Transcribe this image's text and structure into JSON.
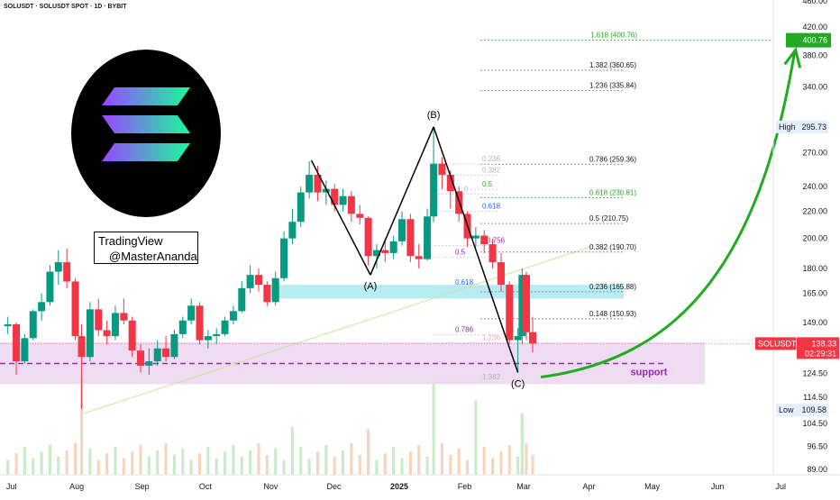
{
  "header": {
    "symbol_line": "SOLUSDT · SOLUSDT SPOT · 1D · BYBIT"
  },
  "watermark": {
    "line1": "TradingView",
    "line2": "@MasterAnanda"
  },
  "logo": {
    "name": "solana-logo",
    "colors": [
      "#9945ff",
      "#19fb9b"
    ]
  },
  "chart_data": {
    "type": "candlestick",
    "symbol": "SOLUSDT",
    "x": {
      "tick_labels": [
        "Jul",
        "Aug",
        "Sep",
        "Oct",
        "Nov",
        "Dec",
        "2025",
        "Feb",
        "Mar",
        "Apr",
        "May",
        "Jun",
        "Jul"
      ]
    },
    "y": {
      "scale": "log",
      "tick_values": [
        89.0,
        96.5,
        104.5,
        114.5,
        124.5,
        149.0,
        165.0,
        180.0,
        200.0,
        220.0,
        240.0,
        270.0,
        340.0,
        380.0,
        420.0,
        460.0
      ],
      "tick_labels": [
        "89.00",
        "96.50",
        "104.50",
        "114.50",
        "124.50",
        "149.00",
        "165.00",
        "180.00",
        "200.00",
        "220.00",
        "240.00",
        "270.00",
        "340.00",
        "380.00",
        "420.00",
        "460.00"
      ]
    },
    "price_badges": [
      {
        "label": "",
        "value": "400.76",
        "color": "#22ab22"
      },
      {
        "label": "High",
        "value": "295.73",
        "color": "#2962ff"
      },
      {
        "label": "SOLUSDT",
        "value": "138.33",
        "sub": "02:29:31",
        "color": "#f23645"
      },
      {
        "label": "Low",
        "value": "109.58",
        "color": "#2962ff"
      }
    ],
    "candles": [
      {
        "d": "2024-07-01",
        "o": 147,
        "h": 152,
        "l": 143,
        "c": 148
      },
      {
        "d": "2024-07-05",
        "o": 148,
        "h": 149,
        "l": 124,
        "c": 130
      },
      {
        "d": "2024-07-09",
        "o": 130,
        "h": 143,
        "l": 129,
        "c": 141
      },
      {
        "d": "2024-07-13",
        "o": 141,
        "h": 156,
        "l": 140,
        "c": 155
      },
      {
        "d": "2024-07-17",
        "o": 155,
        "h": 165,
        "l": 150,
        "c": 160
      },
      {
        "d": "2024-07-21",
        "o": 160,
        "h": 182,
        "l": 158,
        "c": 178
      },
      {
        "d": "2024-07-25",
        "o": 178,
        "h": 192,
        "l": 170,
        "c": 184
      },
      {
        "d": "2024-07-29",
        "o": 184,
        "h": 193,
        "l": 168,
        "c": 172
      },
      {
        "d": "2024-08-02",
        "o": 172,
        "h": 174,
        "l": 140,
        "c": 142
      },
      {
        "d": "2024-08-05",
        "o": 142,
        "h": 148,
        "l": 110,
        "c": 132
      },
      {
        "d": "2024-08-09",
        "o": 132,
        "h": 160,
        "l": 130,
        "c": 156
      },
      {
        "d": "2024-08-13",
        "o": 156,
        "h": 162,
        "l": 142,
        "c": 145
      },
      {
        "d": "2024-08-17",
        "o": 145,
        "h": 150,
        "l": 138,
        "c": 142
      },
      {
        "d": "2024-08-21",
        "o": 142,
        "h": 158,
        "l": 140,
        "c": 154
      },
      {
        "d": "2024-08-25",
        "o": 154,
        "h": 162,
        "l": 148,
        "c": 150
      },
      {
        "d": "2024-08-29",
        "o": 150,
        "h": 152,
        "l": 132,
        "c": 135
      },
      {
        "d": "2024-09-02",
        "o": 135,
        "h": 138,
        "l": 125,
        "c": 128
      },
      {
        "d": "2024-09-06",
        "o": 128,
        "h": 136,
        "l": 124,
        "c": 130
      },
      {
        "d": "2024-09-10",
        "o": 130,
        "h": 140,
        "l": 128,
        "c": 136
      },
      {
        "d": "2024-09-14",
        "o": 136,
        "h": 142,
        "l": 130,
        "c": 132
      },
      {
        "d": "2024-09-18",
        "o": 132,
        "h": 145,
        "l": 131,
        "c": 143
      },
      {
        "d": "2024-09-22",
        "o": 143,
        "h": 152,
        "l": 141,
        "c": 150
      },
      {
        "d": "2024-09-26",
        "o": 150,
        "h": 162,
        "l": 148,
        "c": 158
      },
      {
        "d": "2024-09-30",
        "o": 158,
        "h": 160,
        "l": 138,
        "c": 140
      },
      {
        "d": "2024-10-04",
        "o": 140,
        "h": 145,
        "l": 136,
        "c": 142
      },
      {
        "d": "2024-10-08",
        "o": 142,
        "h": 146,
        "l": 138,
        "c": 143
      },
      {
        "d": "2024-10-12",
        "o": 143,
        "h": 152,
        "l": 142,
        "c": 150
      },
      {
        "d": "2024-10-16",
        "o": 150,
        "h": 158,
        "l": 148,
        "c": 155
      },
      {
        "d": "2024-10-20",
        "o": 155,
        "h": 172,
        "l": 154,
        "c": 168
      },
      {
        "d": "2024-10-24",
        "o": 168,
        "h": 182,
        "l": 165,
        "c": 176
      },
      {
        "d": "2024-10-28",
        "o": 176,
        "h": 180,
        "l": 166,
        "c": 170
      },
      {
        "d": "2024-11-01",
        "o": 170,
        "h": 172,
        "l": 158,
        "c": 160
      },
      {
        "d": "2024-11-05",
        "o": 160,
        "h": 178,
        "l": 158,
        "c": 174
      },
      {
        "d": "2024-11-09",
        "o": 174,
        "h": 205,
        "l": 172,
        "c": 200
      },
      {
        "d": "2024-11-13",
        "o": 200,
        "h": 222,
        "l": 196,
        "c": 212
      },
      {
        "d": "2024-11-17",
        "o": 212,
        "h": 240,
        "l": 208,
        "c": 235
      },
      {
        "d": "2024-11-21",
        "o": 235,
        "h": 262,
        "l": 230,
        "c": 250
      },
      {
        "d": "2024-11-25",
        "o": 250,
        "h": 258,
        "l": 228,
        "c": 235
      },
      {
        "d": "2024-11-29",
        "o": 235,
        "h": 245,
        "l": 225,
        "c": 238
      },
      {
        "d": "2024-12-03",
        "o": 238,
        "h": 242,
        "l": 220,
        "c": 225
      },
      {
        "d": "2024-12-07",
        "o": 225,
        "h": 238,
        "l": 220,
        "c": 232
      },
      {
        "d": "2024-12-11",
        "o": 232,
        "h": 236,
        "l": 212,
        "c": 218
      },
      {
        "d": "2024-12-15",
        "o": 218,
        "h": 225,
        "l": 210,
        "c": 215
      },
      {
        "d": "2024-12-19",
        "o": 215,
        "h": 216,
        "l": 182,
        "c": 188
      },
      {
        "d": "2024-12-23",
        "o": 188,
        "h": 196,
        "l": 180,
        "c": 192
      },
      {
        "d": "2024-12-27",
        "o": 192,
        "h": 198,
        "l": 184,
        "c": 190
      },
      {
        "d": "2024-12-31",
        "o": 190,
        "h": 202,
        "l": 186,
        "c": 198
      },
      {
        "d": "2025-01-04",
        "o": 198,
        "h": 220,
        "l": 195,
        "c": 214
      },
      {
        "d": "2025-01-08",
        "o": 214,
        "h": 218,
        "l": 184,
        "c": 188
      },
      {
        "d": "2025-01-12",
        "o": 188,
        "h": 196,
        "l": 180,
        "c": 186
      },
      {
        "d": "2025-01-16",
        "o": 186,
        "h": 222,
        "l": 185,
        "c": 216
      },
      {
        "d": "2025-01-19",
        "o": 216,
        "h": 295.73,
        "l": 212,
        "c": 260
      },
      {
        "d": "2025-01-23",
        "o": 260,
        "h": 266,
        "l": 238,
        "c": 250
      },
      {
        "d": "2025-01-27",
        "o": 250,
        "h": 254,
        "l": 222,
        "c": 236
      },
      {
        "d": "2025-01-31",
        "o": 236,
        "h": 240,
        "l": 212,
        "c": 218
      },
      {
        "d": "2025-02-04",
        "o": 218,
        "h": 220,
        "l": 194,
        "c": 200
      },
      {
        "d": "2025-02-08",
        "o": 200,
        "h": 208,
        "l": 194,
        "c": 202
      },
      {
        "d": "2025-02-12",
        "o": 202,
        "h": 206,
        "l": 190,
        "c": 196
      },
      {
        "d": "2025-02-16",
        "o": 196,
        "h": 200,
        "l": 180,
        "c": 184
      },
      {
        "d": "2025-02-20",
        "o": 184,
        "h": 190,
        "l": 166,
        "c": 170
      },
      {
        "d": "2025-02-24",
        "o": 170,
        "h": 172,
        "l": 138,
        "c": 140
      },
      {
        "d": "2025-02-28",
        "o": 140,
        "h": 146,
        "l": 125,
        "c": 142
      },
      {
        "d": "2025-03-02",
        "o": 142,
        "h": 180,
        "l": 138,
        "c": 176
      },
      {
        "d": "2025-03-04",
        "o": 176,
        "h": 178,
        "l": 140,
        "c": 144
      },
      {
        "d": "2025-03-07",
        "o": 144,
        "h": 152,
        "l": 134,
        "c": 138.33
      }
    ],
    "support_zone": {
      "top": 139,
      "bottom": 120,
      "label": "support",
      "line": 129,
      "color": "#9c27b0"
    },
    "resistance_zone": {
      "top": 170,
      "bottom": 162,
      "color": "#00bcd4"
    },
    "wave_labels": [
      {
        "text": "(B)",
        "date": "2025-01-19",
        "price": 295.73,
        "pos": "above"
      },
      {
        "text": "(A)",
        "date": "2024-12-20",
        "price": 176,
        "pos": "below"
      },
      {
        "text": "(C)",
        "date": "2025-02-28",
        "price": 125,
        "pos": "below"
      }
    ],
    "wave_lines": [
      {
        "from": [
          "2024-11-22",
          263
        ],
        "to": [
          "2024-12-20",
          176
        ]
      },
      {
        "from": [
          "2024-12-20",
          176
        ],
        "to": [
          "2025-01-19",
          295.73
        ]
      },
      {
        "from": [
          "2025-01-19",
          295.73
        ],
        "to": [
          "2025-02-28",
          125
        ]
      }
    ],
    "fib_extension": [
      {
        "ratio": "1.618",
        "price": 400.76,
        "color": "#22ab22",
        "label": "1.618 (400.76)"
      },
      {
        "ratio": "1.382",
        "price": 360.65,
        "color": "#787b86",
        "label": "1.382 (360.65)"
      },
      {
        "ratio": "1.236",
        "price": 335.84,
        "color": "#787b86",
        "label": "1.236 (335.84)"
      },
      {
        "ratio": "0.786",
        "price": 259.36,
        "color": "#787b86",
        "label": "0.786 (259.36)"
      },
      {
        "ratio": "0.618",
        "price": 230.81,
        "color": "#22ab22",
        "label": "0.618 (230.81)"
      },
      {
        "ratio": "0.5",
        "price": 210.75,
        "color": "#787b86",
        "label": "0.5 (210.75)"
      },
      {
        "ratio": "0.382",
        "price": 190.7,
        "color": "#787b86",
        "label": "0.382 (190.70)"
      },
      {
        "ratio": "0.236",
        "price": 165.88,
        "color": "#787b86",
        "label": "0.236 (165.88)"
      },
      {
        "ratio": "0.148",
        "price": 150.93,
        "color": "#787b86",
        "label": "0.148 (150.93)"
      }
    ],
    "fib_retrace_labels": [
      {
        "text": "0.236",
        "price": 262,
        "color": "#b2b5be"
      },
      {
        "text": "0.382",
        "price": 252,
        "color": "#b2b5be"
      },
      {
        "text": "0",
        "price": 236,
        "color": "#b2b5be"
      },
      {
        "text": "0.5",
        "price": 240,
        "color": "#22ab22"
      },
      {
        "text": "0.618",
        "price": 222,
        "color": "#2962ff"
      },
      {
        "text": "0.756",
        "price": 197,
        "color": "#9c27b0"
      },
      {
        "text": "0.5",
        "price": 189,
        "color": "#9c27b0"
      },
      {
        "text": "0.618",
        "price": 170,
        "color": "#2962ff"
      },
      {
        "text": "0.786",
        "price": 144,
        "color": "#9c27b0"
      },
      {
        "text": "1.236",
        "price": 140,
        "color": "#f7a6a6"
      },
      {
        "text": "1.382",
        "price": 122,
        "color": "#b2b5be"
      }
    ],
    "volume_spikes": [
      {
        "date": "2024-08-05",
        "v": 1.0
      },
      {
        "date": "2025-01-19",
        "v": 0.92
      },
      {
        "date": "2025-02-08",
        "v": 0.75
      },
      {
        "date": "2025-03-02",
        "v": 0.62
      },
      {
        "date": "2024-11-13",
        "v": 0.48
      },
      {
        "date": "2024-12-19",
        "v": 0.46
      }
    ],
    "trendline": {
      "from": [
        "2024-08-05",
        108
      ],
      "to": [
        "2025-04-05",
        195
      ],
      "color": "#c6e89a"
    },
    "projection_arrow": {
      "from": [
        "2025-03-10",
        123
      ],
      "to": [
        "2025-07-05",
        385
      ],
      "color": "#22ab22"
    }
  }
}
